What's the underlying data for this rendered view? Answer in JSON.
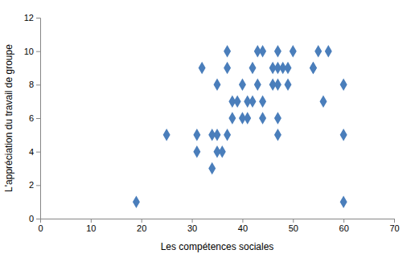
{
  "chart_data": {
    "type": "scatter",
    "x_label": "Les compétences sociales",
    "y_label": "L'appréciation du travail de groupe",
    "x": [
      19,
      25,
      31,
      31,
      32,
      34,
      34,
      35,
      35,
      35,
      36,
      37,
      37,
      37,
      38,
      38,
      39,
      40,
      40,
      41,
      41,
      42,
      42,
      43,
      43,
      44,
      44,
      44,
      46,
      46,
      47,
      47,
      47,
      47,
      47,
      48,
      49,
      49,
      50,
      54,
      54,
      55,
      56,
      57,
      60,
      60,
      60
    ],
    "values": [
      1,
      5,
      5,
      4,
      9,
      3,
      5,
      5,
      4,
      8,
      4,
      5,
      9,
      10,
      6,
      7,
      7,
      8,
      6,
      7,
      6,
      7,
      9,
      10,
      8,
      10,
      6,
      7,
      9,
      8,
      10,
      9,
      8,
      6,
      5,
      9,
      9,
      8,
      10,
      9,
      9,
      10,
      7,
      10,
      8,
      5,
      1
    ],
    "color": "#4a7ebb",
    "marker": "diamond",
    "xlim": [
      0,
      70
    ],
    "xticks": [
      0,
      10,
      20,
      30,
      40,
      50,
      60,
      70
    ],
    "ylim": [
      0,
      12
    ],
    "yticks": [
      0,
      2,
      4,
      6,
      8,
      10,
      12
    ],
    "grid": false
  }
}
